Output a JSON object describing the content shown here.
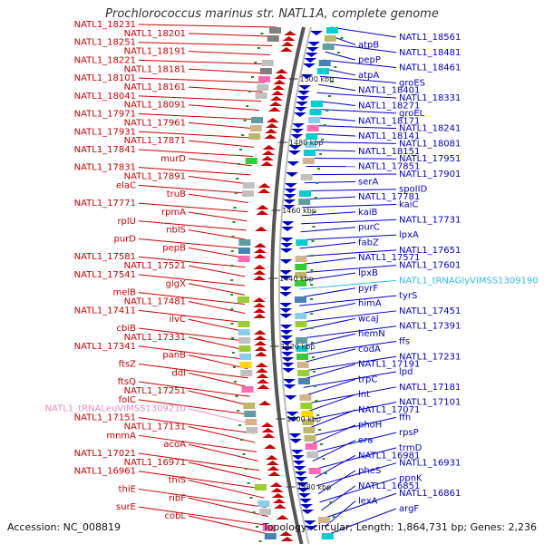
{
  "header": {
    "title": "Prochlorococcus marinus str. NATL1A, complete genome"
  },
  "footer": {
    "accession": "Accession: NC_008819",
    "topology": "Topology: circular; Length: 1,864,731 bp; Genes: 2,236"
  },
  "colors": {
    "reverse": "#cc0000",
    "forward": "#0000cc",
    "trna_rev": "#e68cc0",
    "trna_fwd": "#33bbee"
  },
  "kbp_marks": [
    "1500 kbp",
    "1480 kbp",
    "1460 kbp",
    "1440 kbp",
    "1420 kbp",
    "1400 kbp",
    "1380 kbp"
  ],
  "left_labels": [
    "NATL1_18231",
    "NATL1_18201",
    "NATL1_18251",
    "NATL1_18191",
    "NATL1_18221",
    "NATL1_18181",
    "NATL1_18101",
    "NATL1_18161",
    "NATL1_18041",
    "NATL1_18091",
    "NATL1_17971",
    "NATL1_17961",
    "NATL1_17931",
    "NATL1_17871",
    "NATL1_17841",
    "murD",
    "NATL1_17831",
    "NATL1_17891",
    "elaC",
    "truB",
    "NATL1_17771",
    "rpmA",
    "rplU",
    "nblS",
    "purD",
    "pepB",
    "NATL1_17581",
    "NATL1_17521",
    "NATL1_17541",
    "glgX",
    "melB",
    "NATL1_17481",
    "NATL1_17411",
    "ilvC",
    "cbiB",
    "NATL1_17331",
    "NATL1_17341",
    "panB",
    "ftsZ",
    "ddl",
    "ftsQ",
    "NATL1_17251",
    "folC",
    "NATL1_tRNALeuVIMSS1309210",
    "NATL1_17151",
    "NATL1_17131",
    "mnmA",
    "acoA",
    "NATL1_17021",
    "NATL1_16971",
    "NATL1_16961",
    "thiS",
    "thiE",
    "ribF",
    "surE",
    "cobL"
  ],
  "right_labels": [
    "NATL1_18561",
    "atpB",
    "NATL1_18481",
    "pepP",
    "NATL1_18461",
    "atpA",
    "groES",
    "NATL1_18401",
    "NATL1_18331",
    "NATL1_18271",
    "groEL",
    "NATL1_18171",
    "NATL1_18241",
    "NATL1_18141",
    "NATL1_18081",
    "NATL1_18151",
    "NATL1_17951",
    "NATL1_17851",
    "NATL1_17901",
    "serA",
    "spoIID",
    "NATL1_17781",
    "kaiC",
    "kaiB",
    "NATL1_17731",
    "purC",
    "lpxA",
    "fabZ",
    "NATL1_17651",
    "NATL1_17571",
    "NATL1_17601",
    "lpxB",
    "NATL1_tRNAGlyVIMSS1309190",
    "pyrF",
    "tyrS",
    "himA",
    "NATL1_17451",
    "wcaJ",
    "NATL1_17391",
    "hemN",
    "ffs",
    "codA",
    "NATL1_17231",
    "NATL1_17191",
    "lpd",
    "trpC",
    "NATL1_17181",
    "lnt",
    "NATL1_17101",
    "NATL1_17071",
    "ffh",
    "phoH",
    "rpsP",
    "era",
    "trmD",
    "NATL1_16981",
    "NATL1_16931",
    "pheS",
    "ppnK",
    "NATL1_16851",
    "NATL1_16861",
    "lexA",
    "argF"
  ]
}
